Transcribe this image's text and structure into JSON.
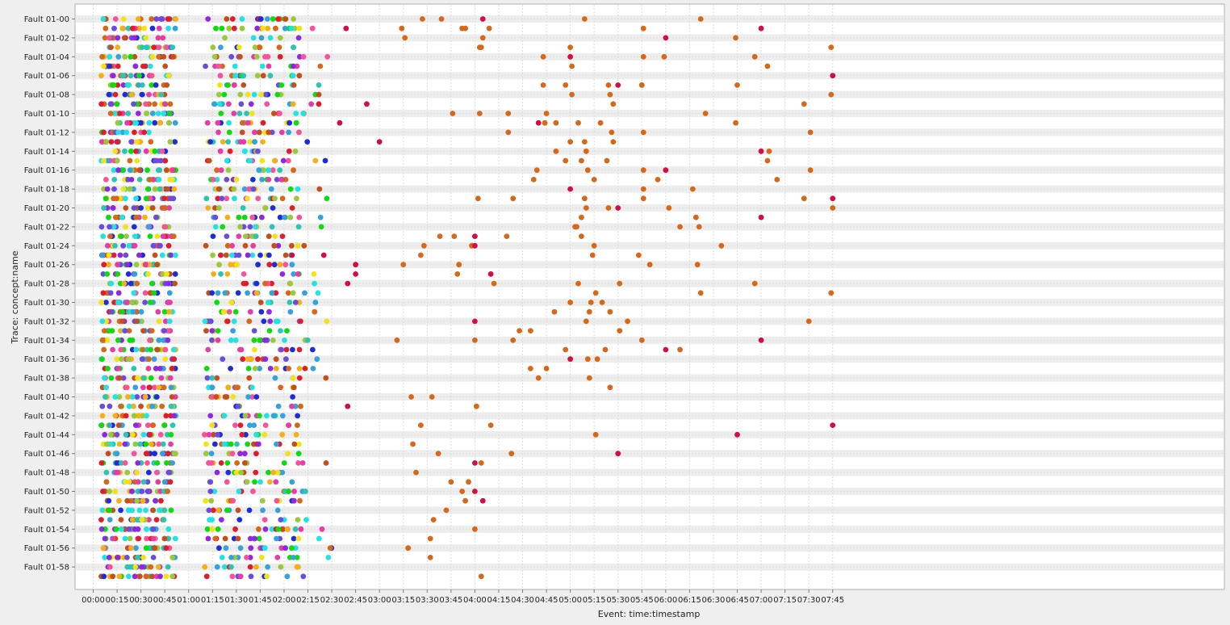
{
  "chart_data": {
    "type": "scatter",
    "xlabel": "Event: time:timestamp",
    "ylabel": "Trace: concept:name",
    "x_ticks": [
      "00:00",
      "00:15",
      "00:30",
      "00:45",
      "01:00",
      "01:15",
      "01:30",
      "01:45",
      "02:00",
      "02:15",
      "02:30",
      "02:45",
      "03:00",
      "03:15",
      "03:30",
      "03:45",
      "04:00",
      "04:15",
      "04:30",
      "04:45",
      "05:00",
      "05:15",
      "05:30",
      "05:45",
      "06:00",
      "06:15",
      "06:30",
      "06:45",
      "07:00",
      "07:15",
      "07:30",
      "07:45"
    ],
    "x_unit": "minutes",
    "xlim": [
      -8,
      478
    ],
    "y_tick_labels": [
      "Fault 01-00",
      "Fault 01-02",
      "Fault 01-04",
      "Fault 01-06",
      "Fault 01-08",
      "Fault 01-10",
      "Fault 01-12",
      "Fault 01-14",
      "Fault 01-16",
      "Fault 01-18",
      "Fault 01-20",
      "Fault 01-22",
      "Fault 01-24",
      "Fault 01-26",
      "Fault 01-28",
      "Fault 01-30",
      "Fault 01-32",
      "Fault 01-34",
      "Fault 01-36",
      "Fault 01-38",
      "Fault 01-40",
      "Fault 01-42",
      "Fault 01-44",
      "Fault 01-46",
      "Fault 01-48",
      "Fault 01-50",
      "Fault 01-52",
      "Fault 01-54",
      "Fault 01-56",
      "Fault 01-58"
    ],
    "trace_count": 60,
    "grid": true,
    "palette": [
      "#2fc4b2",
      "#d9202f",
      "#8d2bd9",
      "#f2b01e",
      "#3aa0d8",
      "#13d813",
      "#1f2ecc",
      "#9bc83f",
      "#f0e21f",
      "#c0501f",
      "#28e0e0",
      "#e23fa6",
      "#6a4fd6",
      "#d2691e",
      "#f2559a"
    ],
    "late_event_color": "#d2691e",
    "rare_event_color": "#cc1144",
    "points": [
      {
        "trace": 0,
        "times": [
          207,
          219,
          309,
          382
        ]
      },
      {
        "trace": 1,
        "times": [
          194,
          232,
          234,
          249,
          346
        ]
      },
      {
        "trace": 2,
        "times": [
          196,
          245,
          404
        ]
      },
      {
        "trace": 3,
        "times": [
          243,
          244,
          300,
          464
        ]
      },
      {
        "trace": 4,
        "times": [
          283,
          359,
          346,
          416
        ]
      },
      {
        "trace": 5,
        "times": [
          301,
          424
        ]
      },
      {
        "trace": 7,
        "times": [
          283,
          297,
          324,
          345,
          345,
          405
        ]
      },
      {
        "trace": 8,
        "times": [
          301,
          325,
          464
        ]
      },
      {
        "trace": 9,
        "times": [
          327,
          447
        ]
      },
      {
        "trace": 10,
        "times": [
          243,
          226,
          261,
          285,
          385
        ]
      },
      {
        "trace": 11,
        "times": [
          291,
          305,
          284,
          319,
          404
        ]
      },
      {
        "trace": 12,
        "times": [
          261,
          326,
          346,
          451
        ]
      },
      {
        "trace": 13,
        "times": [
          300,
          309,
          327
        ]
      },
      {
        "trace": 14,
        "times": [
          291,
          310,
          425
        ]
      },
      {
        "trace": 15,
        "times": [
          307,
          297,
          323,
          424
        ]
      },
      {
        "trace": 16,
        "times": [
          279,
          311,
          346,
          451
        ]
      },
      {
        "trace": 17,
        "times": [
          277,
          315,
          355,
          430
        ]
      },
      {
        "trace": 18,
        "times": [
          346,
          377
        ]
      },
      {
        "trace": 19,
        "times": [
          242,
          264,
          309,
          346,
          447
        ]
      },
      {
        "trace": 20,
        "times": [
          310,
          324,
          362,
          465
        ]
      },
      {
        "trace": 21,
        "times": [
          307,
          379
        ]
      },
      {
        "trace": 22,
        "times": [
          304,
          303,
          369,
          381
        ]
      },
      {
        "trace": 23,
        "times": [
          218,
          227,
          260,
          307
        ]
      },
      {
        "trace": 24,
        "times": [
          208,
          238,
          315,
          395
        ]
      },
      {
        "trace": 25,
        "times": [
          206,
          314,
          343
        ]
      },
      {
        "trace": 26,
        "times": [
          195,
          230,
          350,
          380
        ]
      },
      {
        "trace": 27,
        "times": [
          229,
          250
        ]
      },
      {
        "trace": 28,
        "times": [
          252,
          305,
          331,
          416
        ]
      },
      {
        "trace": 29,
        "times": [
          316,
          382,
          464
        ]
      },
      {
        "trace": 30,
        "times": [
          300,
          313,
          320
        ]
      },
      {
        "trace": 31,
        "times": [
          290,
          312,
          325
        ]
      },
      {
        "trace": 32,
        "times": [
          310,
          336,
          450
        ]
      },
      {
        "trace": 33,
        "times": [
          268,
          275,
          331
        ]
      },
      {
        "trace": 34,
        "times": [
          191,
          240,
          264,
          345
        ]
      },
      {
        "trace": 35,
        "times": [
          322,
          297,
          369
        ]
      },
      {
        "trace": 36,
        "times": [
          311,
          317
        ]
      },
      {
        "trace": 37,
        "times": [
          275,
          285
        ]
      },
      {
        "trace": 38,
        "times": [
          280,
          312
        ]
      },
      {
        "trace": 39,
        "times": [
          325
        ]
      },
      {
        "trace": 40,
        "times": [
          200,
          213
        ]
      },
      {
        "trace": 41,
        "times": [
          241
        ]
      },
      {
        "trace": 43,
        "times": [
          206,
          250
        ]
      },
      {
        "trace": 44,
        "times": [
          316
        ]
      },
      {
        "trace": 45,
        "times": [
          201
        ]
      },
      {
        "trace": 46,
        "times": [
          217,
          263
        ]
      },
      {
        "trace": 47,
        "times": [
          244
        ]
      },
      {
        "trace": 48,
        "times": [
          203
        ]
      },
      {
        "trace": 49,
        "times": [
          225,
          236
        ]
      },
      {
        "trace": 50,
        "times": [
          232
        ]
      },
      {
        "trace": 51,
        "times": [
          234
        ]
      },
      {
        "trace": 52,
        "times": [
          222
        ]
      },
      {
        "trace": 53,
        "times": [
          214
        ]
      },
      {
        "trace": 54,
        "times": [
          240
        ]
      },
      {
        "trace": 55,
        "times": [
          212
        ]
      },
      {
        "trace": 56,
        "times": [
          198
        ]
      },
      {
        "trace": 57,
        "times": [
          212
        ]
      },
      {
        "trace": 59,
        "times": [
          244
        ]
      }
    ],
    "rare_points": [
      {
        "trace": 0,
        "times": [
          245
        ]
      },
      {
        "trace": 1,
        "times": [
          159,
          420
        ]
      },
      {
        "trace": 2,
        "times": [
          360
        ]
      },
      {
        "trace": 4,
        "times": [
          300
        ]
      },
      {
        "trace": 6,
        "times": [
          465
        ]
      },
      {
        "trace": 7,
        "times": [
          330
        ]
      },
      {
        "trace": 9,
        "times": [
          172
        ]
      },
      {
        "trace": 11,
        "times": [
          155,
          280
        ]
      },
      {
        "trace": 13,
        "times": [
          180
        ]
      },
      {
        "trace": 14,
        "times": [
          420
        ]
      },
      {
        "trace": 16,
        "times": [
          360
        ]
      },
      {
        "trace": 18,
        "times": [
          300
        ]
      },
      {
        "trace": 19,
        "times": [
          465
        ]
      },
      {
        "trace": 20,
        "times": [
          330
        ]
      },
      {
        "trace": 21,
        "times": [
          420
        ]
      },
      {
        "trace": 23,
        "times": [
          240
        ]
      },
      {
        "trace": 24,
        "times": [
          240
        ]
      },
      {
        "trace": 25,
        "times": [
          145,
          125
        ]
      },
      {
        "trace": 26,
        "times": [
          165
        ]
      },
      {
        "trace": 27,
        "times": [
          165,
          250
        ]
      },
      {
        "trace": 28,
        "times": [
          160
        ]
      },
      {
        "trace": 32,
        "times": [
          240
        ]
      },
      {
        "trace": 34,
        "times": [
          420
        ]
      },
      {
        "trace": 35,
        "times": [
          360
        ]
      },
      {
        "trace": 36,
        "times": [
          300
        ]
      },
      {
        "trace": 41,
        "times": [
          160
        ]
      },
      {
        "trace": 43,
        "times": [
          465
        ]
      },
      {
        "trace": 44,
        "times": [
          405
        ]
      },
      {
        "trace": 46,
        "times": [
          330
        ]
      },
      {
        "trace": 47,
        "times": [
          240
        ]
      },
      {
        "trace": 50,
        "times": [
          240
        ]
      },
      {
        "trace": 51,
        "times": [
          245
        ]
      }
    ]
  }
}
